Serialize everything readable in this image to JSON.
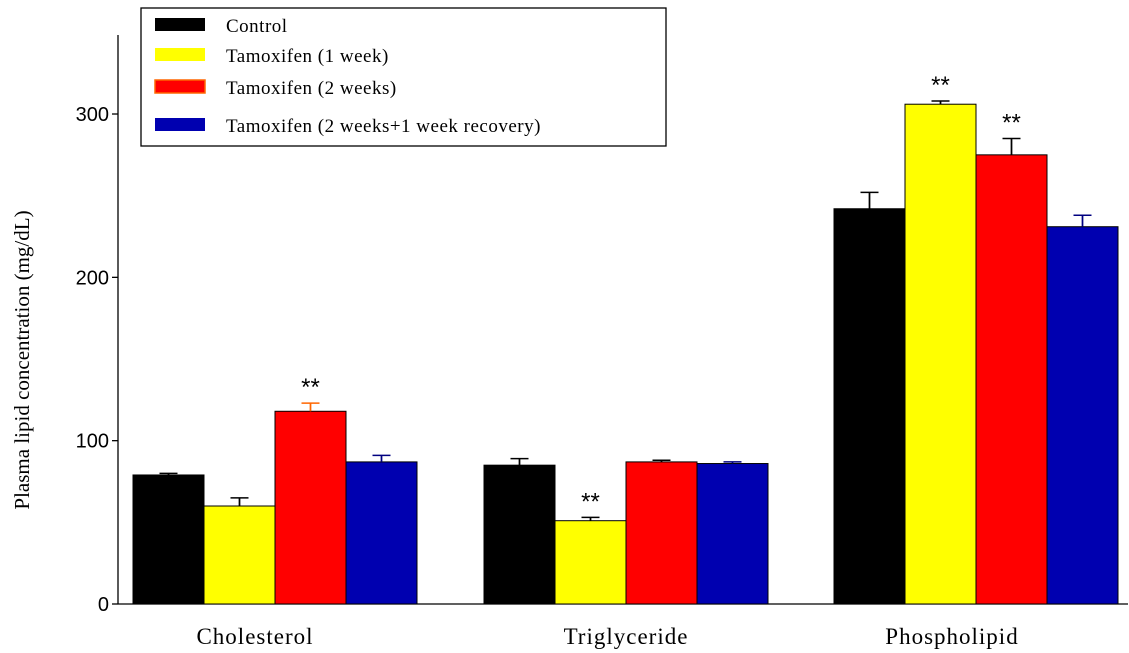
{
  "chart_data": {
    "type": "bar",
    "title": "",
    "xlabel": "",
    "ylabel": "Plasma lipid concentration (mg/dL)",
    "ylim": [
      0,
      350
    ],
    "yticks": [
      0,
      100,
      200,
      300
    ],
    "categories": [
      "Cholesterol",
      "Triglyceride",
      "Phospholipid"
    ],
    "series": [
      {
        "name": "Control",
        "color": "#000000",
        "values": [
          79,
          85,
          242
        ],
        "errors": [
          1,
          4,
          10
        ],
        "annotations": [
          "",
          "",
          ""
        ]
      },
      {
        "name": "Tamoxifen (1 week)",
        "color": "#ffff00",
        "values": [
          60,
          51,
          306
        ],
        "errors": [
          5,
          2,
          2
        ],
        "annotations": [
          "",
          "**",
          "**"
        ]
      },
      {
        "name": "Tamoxifen (2 weeks)",
        "color": "#ff0000",
        "values": [
          118,
          87,
          275
        ],
        "errors": [
          5,
          1,
          10
        ],
        "annotations": [
          "**",
          "",
          "**"
        ]
      },
      {
        "name": "Tamoxifen (2 weeks+1 week recovery)",
        "color": "#0000b0",
        "values": [
          87,
          86,
          231
        ],
        "errors": [
          4,
          1,
          7
        ],
        "annotations": [
          "",
          "",
          ""
        ]
      }
    ],
    "legend_position": "top-left",
    "grid": false
  }
}
